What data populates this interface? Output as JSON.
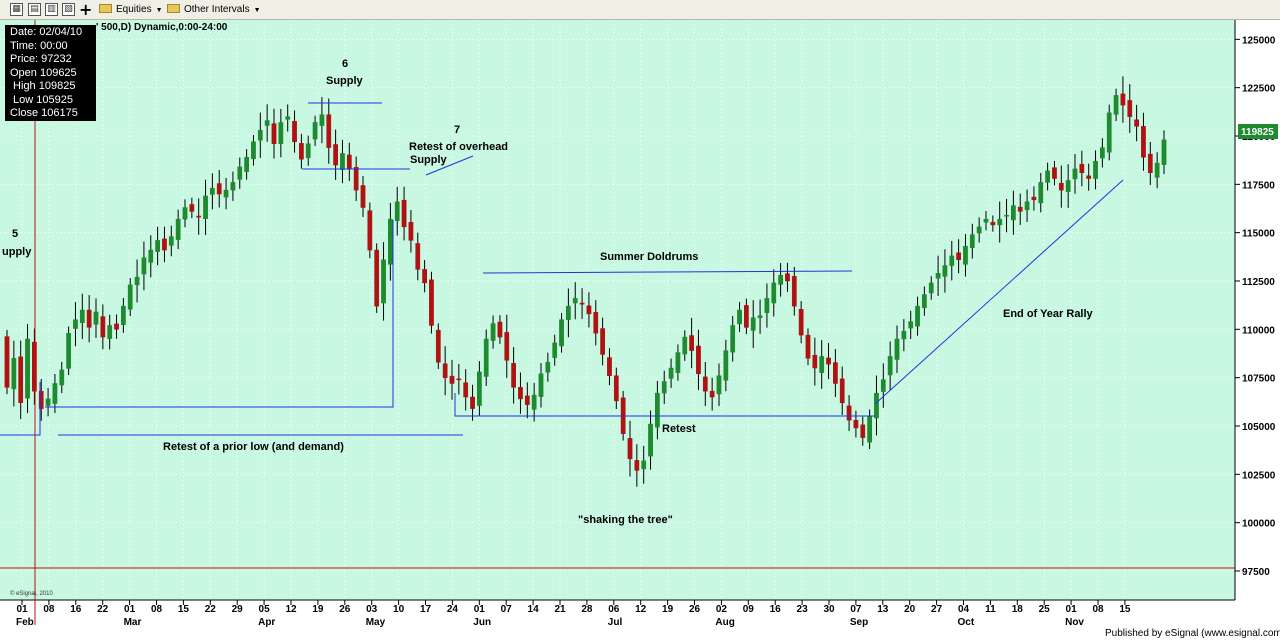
{
  "toolbar": {
    "equities_label": "Equities",
    "intervals_label": "Other Intervals",
    "add_label": "+"
  },
  "info_box": {
    "date": "Date: 02/04/10",
    "time": "Time: 00:00",
    "price": "Price: 97232",
    "open": "Open 109625",
    "high": " High 109825",
    "low": " Low 105925",
    "close": "Close 106175"
  },
  "title": "' 500,D) Dynamic,0:00-24:00",
  "copyright": "© eSignal, 2010",
  "footer": "Published by eSignal (www.esignal.com)",
  "colors": {
    "background": "#c8f7e2",
    "up_candle": "#1e8b2e",
    "down_candle": "#b01212",
    "annotation_line": "#2233dd",
    "cursor_line": "#c01010",
    "last_price_tag": "#1e8b2e"
  },
  "annotations": {
    "supply5_num": "5",
    "supply5_label": "upply",
    "supply6_num": "6",
    "supply6_label": "Supply",
    "retest7_num": "7",
    "retest7_label1": "Retest of overhead",
    "retest7_label2": "Supply",
    "summer": "Summer Doldrums",
    "prior_low": "Retest of a prior low (and demand)",
    "retest": "Retest",
    "shaking": "\"shaking the tree\"",
    "rally": "End of Year Rally"
  },
  "chart_data": {
    "type": "candlestick",
    "title": "' 500,D) Dynamic,0:00-24:00",
    "y_range": [
      96000,
      126000
    ],
    "y_ticks": [
      97500,
      100000,
      102500,
      105000,
      107500,
      110000,
      112500,
      115000,
      117500,
      120000,
      122500,
      125000
    ],
    "last_price": "119825",
    "x_ticks": [
      "01",
      "08",
      "16",
      "22",
      "01",
      "08",
      "15",
      "22",
      "29",
      "05",
      "12",
      "19",
      "26",
      "03",
      "10",
      "17",
      "24",
      "01",
      "07",
      "14",
      "21",
      "28",
      "06",
      "12",
      "19",
      "26",
      "02",
      "09",
      "16",
      "23",
      "30",
      "07",
      "13",
      "20",
      "27",
      "04",
      "11",
      "18",
      "25",
      "01",
      "08",
      "15"
    ],
    "months": [
      "Feb",
      "Mar",
      "Apr",
      "May",
      "Jun",
      "Jul",
      "Aug",
      "Sep",
      "Oct",
      "Nov"
    ],
    "closes": [
      107000,
      108500,
      106200,
      109500,
      106800,
      105900,
      106400,
      107200,
      107900,
      109800,
      110500,
      111000,
      110100,
      110900,
      109600,
      110200,
      110000,
      111200,
      112300,
      112700,
      113700,
      114100,
      114600,
      114100,
      114800,
      115700,
      116300,
      116100,
      115800,
      116900,
      117300,
      117000,
      117200,
      117600,
      118400,
      118900,
      119700,
      120300,
      120800,
      119600,
      120700,
      121000,
      119700,
      118800,
      119600,
      120700,
      121100,
      119400,
      118500,
      119100,
      118300,
      117200,
      116300,
      114100,
      111200,
      113600,
      115700,
      116600,
      115300,
      114600,
      113100,
      112400,
      110200,
      108300,
      107500,
      107200,
      107400,
      106500,
      105900,
      107800,
      109500,
      110300,
      109600,
      108400,
      107000,
      106400,
      106100,
      106600,
      107700,
      108300,
      109300,
      110500,
      111200,
      111600,
      111300,
      110800,
      109800,
      108700,
      107600,
      106300,
      104600,
      103300,
      102700,
      103200,
      105100,
      106700,
      107300,
      108000,
      108800,
      109600,
      108900,
      107700,
      106800,
      106500,
      107600,
      108900,
      110200,
      111000,
      110100,
      110600,
      110700,
      111600,
      112400,
      112800,
      112500,
      111200,
      109700,
      108500,
      108000,
      108600,
      108200,
      107200,
      106200,
      105300,
      104900,
      104400,
      105500,
      106700,
      107400,
      108600,
      109500,
      109900,
      110400,
      111200,
      111800,
      112400,
      112900,
      113300,
      113800,
      113600,
      114300,
      114900,
      115300,
      115700,
      115400,
      115700,
      115900,
      116400,
      116100,
      116600,
      116700,
      117600,
      118200,
      117800,
      117200,
      117700,
      118300,
      118100,
      117800,
      118700,
      119400,
      121200,
      122100,
      121600,
      121000,
      120500,
      118900,
      118100,
      118600,
      119800
    ]
  }
}
